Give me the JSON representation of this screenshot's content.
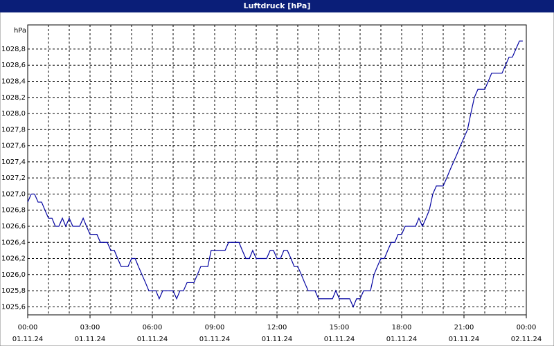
{
  "chart_data": {
    "type": "line",
    "title": "Luftdruck [hPa]",
    "y_label": "hPa",
    "xlim": [
      0,
      24
    ],
    "ylim": [
      1025.5,
      1029.1
    ],
    "xticks": [
      {
        "value": 0,
        "label": "00:00"
      },
      {
        "value": 3,
        "label": "03:00"
      },
      {
        "value": 6,
        "label": "06:00"
      },
      {
        "value": 9,
        "label": "09:00"
      },
      {
        "value": 12,
        "label": "12:00"
      },
      {
        "value": 15,
        "label": "15:00"
      },
      {
        "value": 18,
        "label": "18:00"
      },
      {
        "value": 21,
        "label": "21:00"
      },
      {
        "value": 24,
        "label": "00:00"
      }
    ],
    "xtick_dates": [
      "01.11.24",
      "01.11.24",
      "01.11.24",
      "01.11.24",
      "01.11.24",
      "01.11.24",
      "01.11.24",
      "01.11.24",
      "02.11.24"
    ],
    "xminorticks": [
      1,
      2,
      4,
      5,
      7,
      8,
      10,
      11,
      13,
      14,
      16,
      17,
      19,
      20,
      22,
      23
    ],
    "yticks": [
      {
        "value": 1025.6,
        "label": "1025,6"
      },
      {
        "value": 1025.8,
        "label": "1025,8"
      },
      {
        "value": 1026.0,
        "label": "1026,0"
      },
      {
        "value": 1026.2,
        "label": "1026,2"
      },
      {
        "value": 1026.4,
        "label": "1026,4"
      },
      {
        "value": 1026.6,
        "label": "1026,6"
      },
      {
        "value": 1026.8,
        "label": "1026,8"
      },
      {
        "value": 1027.0,
        "label": "1027,0"
      },
      {
        "value": 1027.2,
        "label": "1027,2"
      },
      {
        "value": 1027.4,
        "label": "1027,4"
      },
      {
        "value": 1027.6,
        "label": "1027,6"
      },
      {
        "value": 1027.8,
        "label": "1027,8"
      },
      {
        "value": 1028.0,
        "label": "1028,0"
      },
      {
        "value": 1028.2,
        "label": "1028,2"
      },
      {
        "value": 1028.4,
        "label": "1028,4"
      },
      {
        "value": 1028.6,
        "label": "1028,6"
      },
      {
        "value": 1028.8,
        "label": "1028,8"
      }
    ],
    "grid": true,
    "x": [
      0,
      0.17,
      0.33,
      0.5,
      0.67,
      0.83,
      1,
      1.17,
      1.33,
      1.5,
      1.67,
      1.83,
      2,
      2.17,
      2.33,
      2.5,
      2.67,
      2.83,
      3,
      3.17,
      3.33,
      3.5,
      3.67,
      3.83,
      4,
      4.17,
      4.33,
      4.5,
      4.67,
      4.83,
      5,
      5.17,
      5.33,
      5.5,
      5.67,
      5.83,
      6,
      6.17,
      6.33,
      6.5,
      6.67,
      6.83,
      7,
      7.17,
      7.33,
      7.5,
      7.67,
      7.83,
      8,
      8.17,
      8.33,
      8.5,
      8.67,
      8.83,
      9,
      9.17,
      9.33,
      9.5,
      9.67,
      9.83,
      10,
      10.17,
      10.33,
      10.5,
      10.67,
      10.83,
      11,
      11.17,
      11.33,
      11.5,
      11.67,
      11.83,
      12,
      12.17,
      12.33,
      12.5,
      12.67,
      12.83,
      13,
      13.17,
      13.33,
      13.5,
      13.67,
      13.83,
      14,
      14.17,
      14.33,
      14.5,
      14.67,
      14.83,
      15,
      15.17,
      15.33,
      15.5,
      15.67,
      15.83,
      16,
      16.17,
      16.33,
      16.5,
      16.67,
      16.83,
      17,
      17.17,
      17.33,
      17.5,
      17.67,
      17.83,
      18,
      18.17,
      18.33,
      18.5,
      18.67,
      18.83,
      19,
      19.17,
      19.33,
      19.5,
      19.67,
      19.83,
      20,
      20.17,
      20.33,
      20.5,
      20.67,
      20.83,
      21,
      21.17,
      21.33,
      21.5,
      21.67,
      21.83,
      22,
      22.17,
      22.33,
      22.5,
      22.67,
      22.83,
      23,
      23.17,
      23.33,
      23.5,
      23.67,
      23.83
    ],
    "series": [
      {
        "name": "Luftdruck",
        "color": "#0000a0",
        "values": [
          1026.9,
          1027.0,
          1027.0,
          1026.9,
          1026.9,
          1026.8,
          1026.7,
          1026.7,
          1026.6,
          1026.6,
          1026.7,
          1026.6,
          1026.7,
          1026.6,
          1026.6,
          1026.6,
          1026.7,
          1026.6,
          1026.5,
          1026.5,
          1026.5,
          1026.4,
          1026.4,
          1026.4,
          1026.3,
          1026.3,
          1026.2,
          1026.1,
          1026.1,
          1026.1,
          1026.2,
          1026.2,
          1026.1,
          1026.0,
          1025.9,
          1025.8,
          1025.8,
          1025.8,
          1025.7,
          1025.8,
          1025.8,
          1025.8,
          1025.8,
          1025.7,
          1025.8,
          1025.8,
          1025.9,
          1025.9,
          1025.9,
          1026.0,
          1026.1,
          1026.1,
          1026.1,
          1026.3,
          1026.3,
          1026.3,
          1026.3,
          1026.3,
          1026.4,
          1026.4,
          1026.4,
          1026.4,
          1026.3,
          1026.2,
          1026.2,
          1026.3,
          1026.2,
          1026.2,
          1026.2,
          1026.2,
          1026.3,
          1026.3,
          1026.2,
          1026.2,
          1026.3,
          1026.3,
          1026.2,
          1026.1,
          1026.1,
          1026.0,
          1025.9,
          1025.8,
          1025.8,
          1025.8,
          1025.7,
          1025.7,
          1025.7,
          1025.7,
          1025.7,
          1025.8,
          1025.7,
          1025.7,
          1025.7,
          1025.7,
          1025.6,
          1025.7,
          1025.7,
          1025.8,
          1025.8,
          1025.8,
          1026.0,
          1026.1,
          1026.2,
          1026.2,
          1026.3,
          1026.4,
          1026.4,
          1026.5,
          1026.5,
          1026.6,
          1026.6,
          1026.6,
          1026.6,
          1026.7,
          1026.6,
          1026.7,
          1026.8,
          1027.0,
          1027.1,
          1027.1,
          1027.1,
          1027.2,
          1027.3,
          1027.4,
          1027.5,
          1027.6,
          1027.7,
          1027.8,
          1028.0,
          1028.2,
          1028.3,
          1028.3,
          1028.3,
          1028.4,
          1028.5,
          1028.5,
          1028.5,
          1028.5,
          1028.6,
          1028.7,
          1028.7,
          1028.8,
          1028.9,
          1028.9
        ]
      }
    ]
  }
}
